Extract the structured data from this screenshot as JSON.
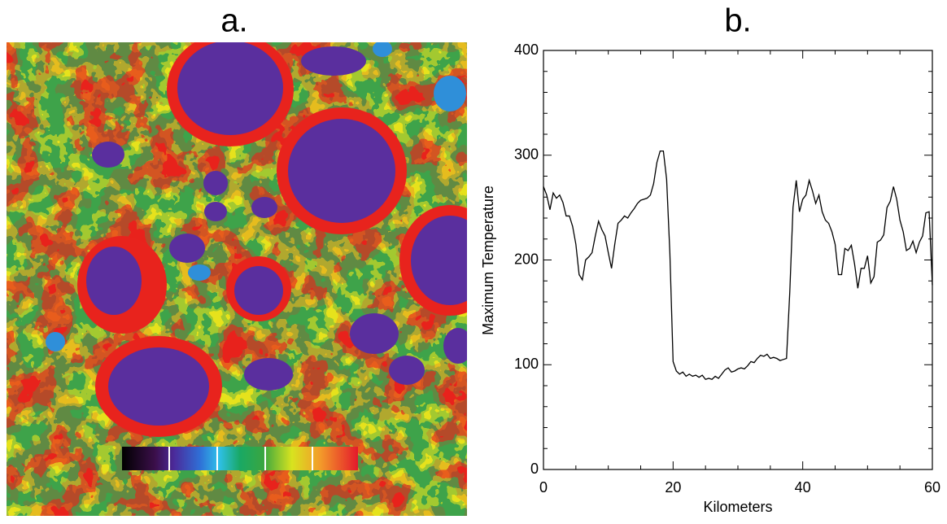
{
  "image_panel": {
    "label": "a."
  },
  "chart_data": {
    "type": "line",
    "title": "b.",
    "xlabel": "Kilometers",
    "ylabel": "Maximum Temperature",
    "color": "#000000",
    "x": [
      0,
      0.5,
      1,
      1.5,
      2,
      2.5,
      3,
      3.5,
      4,
      4.5,
      5,
      5.5,
      6,
      6.5,
      7,
      7.5,
      8,
      8.5,
      9,
      9.5,
      10,
      10.5,
      11,
      11.5,
      12,
      12.5,
      13,
      13.5,
      14,
      14.5,
      15,
      15.5,
      16,
      16.5,
      17,
      17.5,
      18,
      18.5,
      19,
      19.5,
      20,
      20.5,
      21,
      21.5,
      22,
      22.5,
      23,
      23.5,
      24,
      24.5,
      25,
      25.5,
      26,
      26.5,
      27,
      27.5,
      28,
      28.5,
      29,
      29.5,
      30,
      30.5,
      31,
      31.5,
      32,
      32.5,
      33,
      33.5,
      34,
      34.5,
      35,
      35.5,
      36,
      36.5,
      37,
      37.5,
      38,
      38.5,
      39,
      39.5,
      40,
      40.5,
      41,
      41.5,
      42,
      42.5,
      43,
      43.5,
      44,
      44.5,
      45,
      45.5,
      46,
      46.5,
      47,
      47.5,
      48,
      48.5,
      49,
      49.5,
      50,
      50.5,
      51,
      51.5,
      52,
      52.5,
      53,
      53.5,
      54,
      54.5,
      55,
      55.5,
      56,
      56.5,
      57,
      57.5,
      58,
      58.5,
      59,
      59.5,
      60
    ],
    "values": [
      270,
      262,
      248,
      264,
      259,
      262,
      255,
      242,
      242,
      232,
      215,
      186,
      181,
      200,
      203,
      207,
      223,
      237,
      229,
      223,
      207,
      192,
      215,
      235,
      238,
      242,
      240,
      245,
      249,
      254,
      257,
      258,
      259,
      262,
      273,
      293,
      304,
      304,
      277,
      207,
      103,
      94,
      91,
      93,
      89,
      91,
      89,
      90,
      88,
      90,
      86,
      87,
      86,
      89,
      87,
      91,
      95,
      97,
      93,
      94,
      96,
      97,
      96,
      99,
      103,
      102,
      106,
      109,
      108,
      110,
      106,
      107,
      106,
      104,
      105,
      106,
      169,
      250,
      276,
      246,
      258,
      262,
      276,
      266,
      254,
      262,
      246,
      238,
      235,
      227,
      215,
      186,
      186,
      211,
      209,
      214,
      196,
      173,
      192,
      192,
      204,
      178,
      184,
      217,
      219,
      224,
      250,
      256,
      270,
      258,
      238,
      227,
      209,
      211,
      218,
      207,
      217,
      223,
      245,
      246,
      176
    ],
    "xlim": [
      0,
      60
    ],
    "xticks": [
      0,
      20,
      40,
      60
    ],
    "xminorticks": [
      5,
      10,
      15,
      25,
      30,
      35,
      45,
      50,
      55
    ],
    "ylim": [
      0,
      400
    ],
    "yticks": [
      0,
      100,
      200,
      300,
      400
    ],
    "yminorticks": [
      20,
      40,
      60,
      80,
      120,
      140,
      160,
      180,
      220,
      240,
      260,
      280,
      320,
      340,
      360,
      380
    ]
  }
}
